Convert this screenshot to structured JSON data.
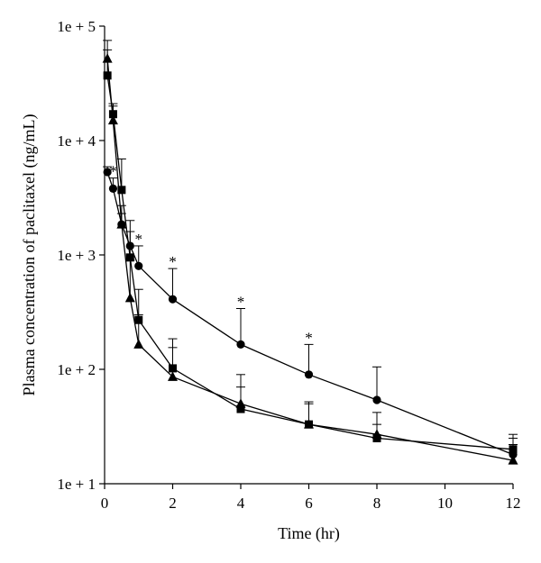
{
  "chart_data": {
    "type": "line",
    "xlabel": "Time (hr)",
    "ylabel": "Plasma concentration of paclitaxel (ng/mL)",
    "x_scale": "linear",
    "y_scale": "log",
    "xlim": [
      0,
      12
    ],
    "ylim": [
      10,
      100000
    ],
    "x_ticks": [
      0,
      2,
      4,
      6,
      8,
      10,
      12
    ],
    "x_tick_labels": [
      "0",
      "2",
      "4",
      "6",
      "8",
      "10",
      "12"
    ],
    "y_ticks": [
      10,
      100,
      1000,
      10000,
      100000
    ],
    "y_tick_labels": [
      "1e + 1",
      "1e + 2",
      "1e + 3",
      "1e + 4",
      "1e + 5"
    ],
    "grid": false,
    "legend": "none",
    "significance_marker": "*",
    "series": [
      {
        "marker": "circle",
        "x": [
          0.083,
          0.25,
          0.5,
          0.75,
          1,
          2,
          4,
          6,
          8,
          12
        ],
        "y": [
          5300,
          3800,
          1850,
          1200,
          800,
          410,
          165,
          90,
          54,
          18
        ],
        "err_upper": [
          5900,
          4700,
          2300,
          2000,
          1200,
          760,
          340,
          165,
          105,
          25
        ],
        "significant": [
          false,
          true,
          false,
          false,
          true,
          true,
          true,
          true,
          false,
          false
        ]
      },
      {
        "marker": "square",
        "x": [
          0.083,
          0.25,
          0.5,
          0.75,
          1,
          2,
          4,
          6,
          8,
          12
        ],
        "y": [
          37000,
          17000,
          3700,
          950,
          270,
          102,
          45,
          33,
          25,
          20
        ],
        "err_upper": [
          62000,
          21000,
          6900,
          1600,
          500,
          185,
          70,
          50,
          33,
          27
        ],
        "significant": [
          false,
          false,
          false,
          false,
          false,
          false,
          false,
          false,
          false,
          false
        ]
      },
      {
        "marker": "triangle",
        "x": [
          0.083,
          0.25,
          0.5,
          0.75,
          1,
          2,
          4,
          6,
          8,
          12
        ],
        "y": [
          52000,
          15000,
          1850,
          420,
          165,
          86,
          50,
          33,
          27,
          16
        ],
        "err_upper": [
          75000,
          20000,
          2700,
          900,
          300,
          155,
          90,
          52,
          42,
          22
        ],
        "significant": [
          false,
          false,
          false,
          false,
          false,
          false,
          false,
          false,
          false,
          false
        ]
      }
    ]
  }
}
